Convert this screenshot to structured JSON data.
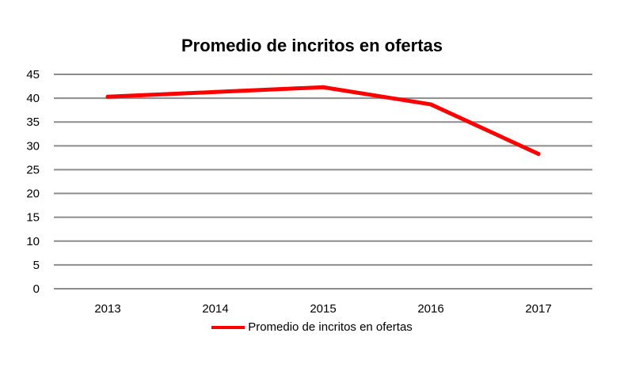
{
  "chart_data": {
    "type": "line",
    "title": "Promedio de incritos en ofertas",
    "categories": [
      "2013",
      "2014",
      "2015",
      "2016",
      "2017"
    ],
    "series": [
      {
        "name": "Promedio de incritos en ofertas",
        "values": [
          40.3,
          41.3,
          42.3,
          38.7,
          28.3
        ],
        "color": "#ff0000"
      }
    ],
    "yticks": [
      "0",
      "5",
      "10",
      "15",
      "20",
      "25",
      "30",
      "35",
      "40",
      "45"
    ],
    "ylim": [
      0,
      45
    ],
    "xlabel": "",
    "ylabel": "",
    "grid": true,
    "legend": "bottom"
  }
}
